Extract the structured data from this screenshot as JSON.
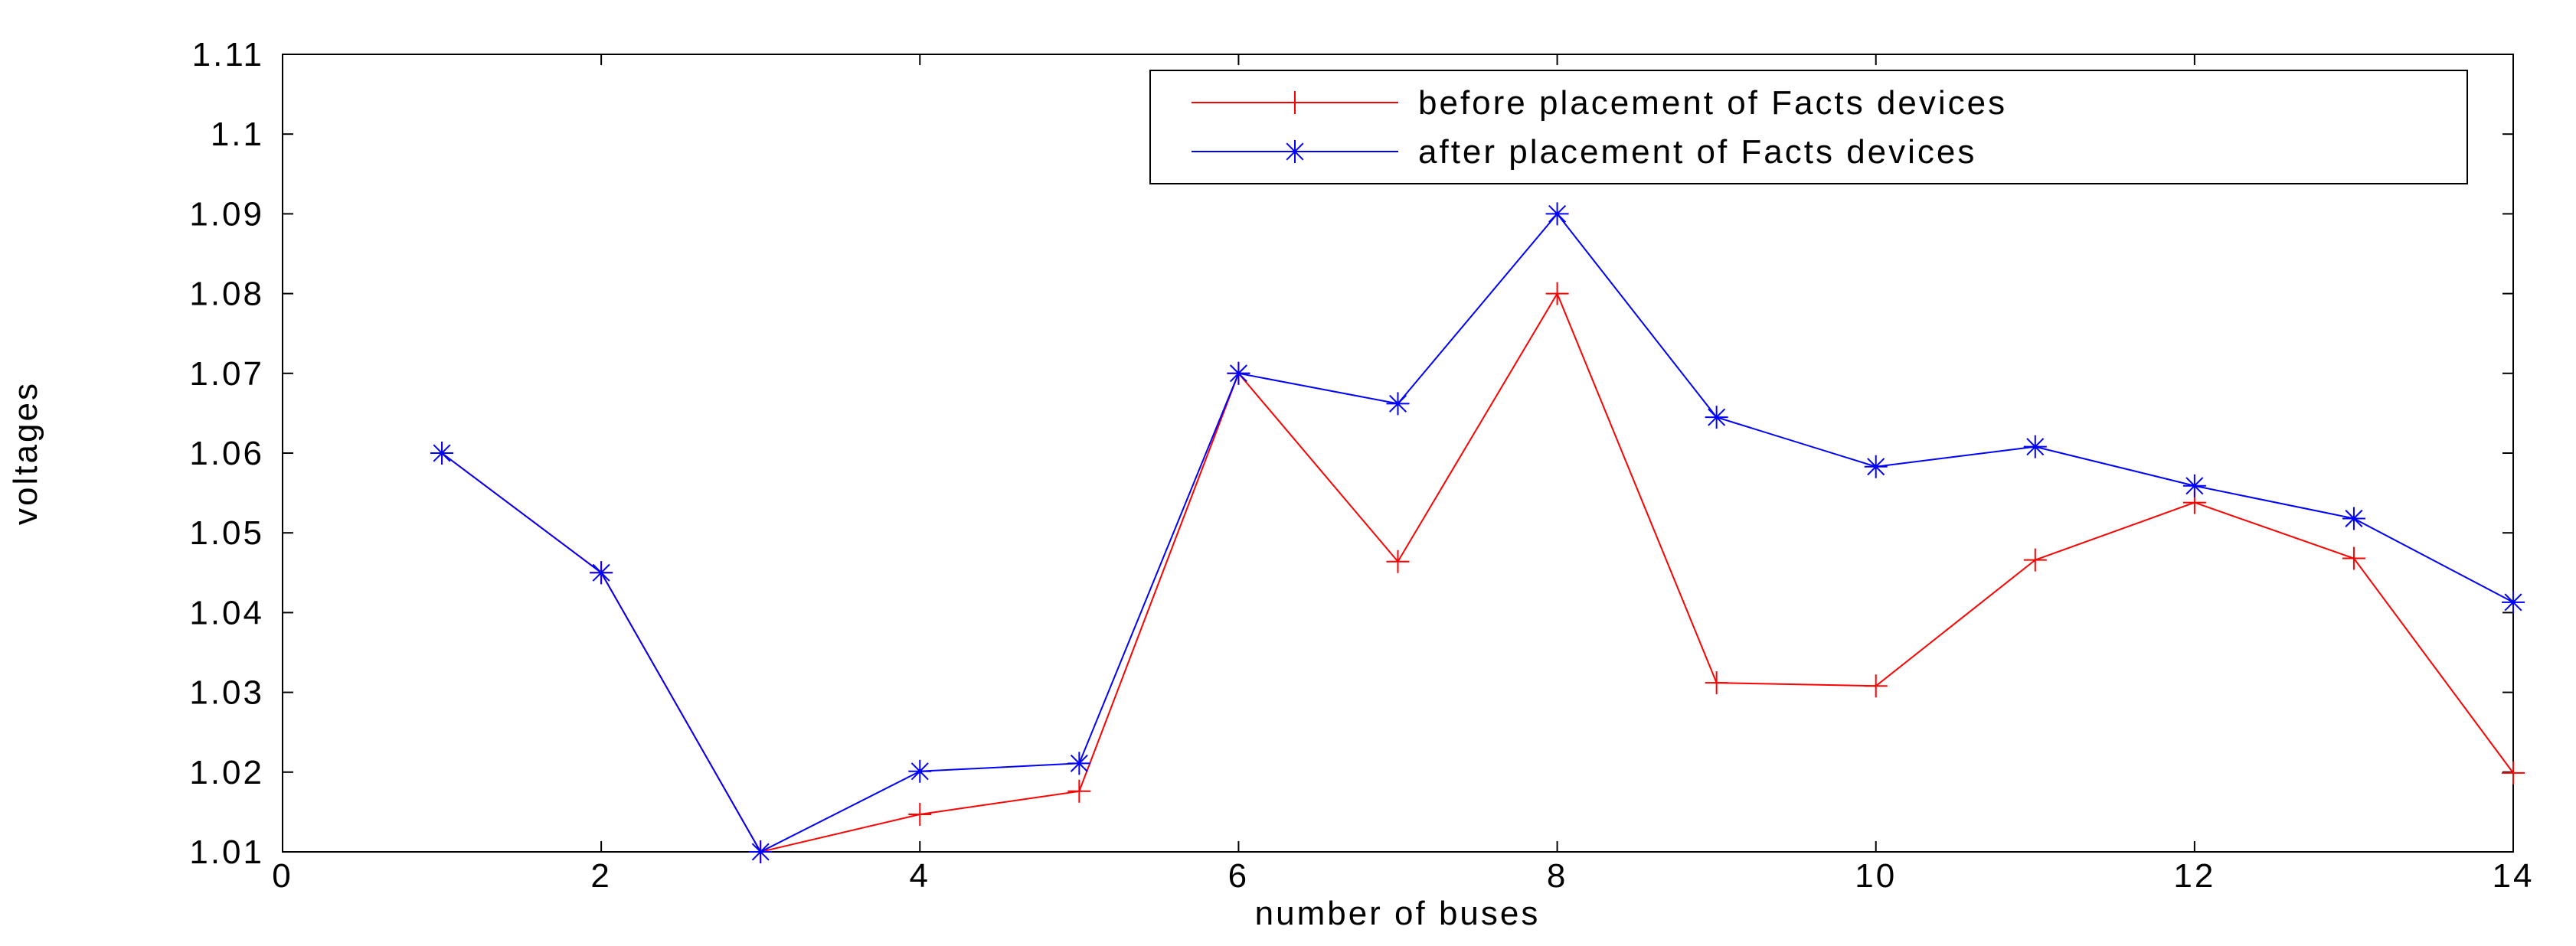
{
  "chart_data": {
    "type": "line",
    "xlabel": "number of buses",
    "ylabel": "voltages",
    "x": [
      1,
      2,
      3,
      4,
      5,
      6,
      7,
      8,
      9,
      10,
      11,
      12,
      13,
      14
    ],
    "series": [
      {
        "name": "before placement of Facts devices",
        "color": "#ff0000",
        "marker": "+",
        "values": [
          1.06,
          1.045,
          1.01,
          1.0147,
          1.0176,
          1.07,
          1.0464,
          1.08,
          1.0312,
          1.0308,
          1.0466,
          1.0538,
          1.0468,
          1.0199
        ]
      },
      {
        "name": "after placement of Facts devices",
        "color": "#0000ff",
        "marker": "*",
        "values": [
          1.06,
          1.045,
          1.01,
          1.0201,
          1.0211,
          1.07,
          1.0662,
          1.09,
          1.0645,
          1.0583,
          1.0608,
          1.0559,
          1.0518,
          1.0413
        ]
      }
    ],
    "xlim": [
      0,
      14
    ],
    "xticks": [
      0,
      2,
      4,
      6,
      8,
      10,
      12,
      14
    ],
    "ylim": [
      1.01,
      1.11
    ],
    "yticks": [
      1.01,
      1.02,
      1.03,
      1.04,
      1.05,
      1.06,
      1.07,
      1.08,
      1.09,
      1.1,
      1.11
    ],
    "grid": false,
    "legend": "upper right"
  }
}
